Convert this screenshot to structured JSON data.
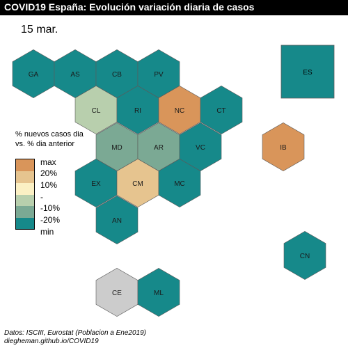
{
  "title": "COVID19 España: Evolución variación diaria de casos",
  "date": "15 mar.",
  "legend": {
    "title_line1": "% nuevos casos dia",
    "title_line2": "vs. % dia anterior",
    "labels": [
      "max",
      "20%",
      "10%",
      "-",
      "-10%",
      "-20%",
      "min"
    ],
    "colors": [
      "#d9955a",
      "#e6c48f",
      "#fbf0c4",
      "#b8cfad",
      "#7ba994",
      "#16898a"
    ]
  },
  "regions": [
    {
      "code": "GA",
      "color": "#16898a"
    },
    {
      "code": "AS",
      "color": "#16898a"
    },
    {
      "code": "CB",
      "color": "#16898a"
    },
    {
      "code": "PV",
      "color": "#16898a"
    },
    {
      "code": "CL",
      "color": "#b8cfad"
    },
    {
      "code": "RI",
      "color": "#16898a"
    },
    {
      "code": "NC",
      "color": "#d9955a"
    },
    {
      "code": "CT",
      "color": "#16898a"
    },
    {
      "code": "MD",
      "color": "#7ba994"
    },
    {
      "code": "AR",
      "color": "#7ba994"
    },
    {
      "code": "VC",
      "color": "#16898a"
    },
    {
      "code": "EX",
      "color": "#16898a"
    },
    {
      "code": "CM",
      "color": "#e6c48f"
    },
    {
      "code": "MC",
      "color": "#16898a"
    },
    {
      "code": "AN",
      "color": "#16898a"
    },
    {
      "code": "CE",
      "color": "#cccccc"
    },
    {
      "code": "ML",
      "color": "#16898a"
    },
    {
      "code": "IB",
      "color": "#d9955a"
    },
    {
      "code": "CN",
      "color": "#16898a"
    },
    {
      "code": "ES",
      "color": "#16898a"
    }
  ],
  "source_line1": "Datos: ISCIII, Eurostat (Poblacion a Ene2019)",
  "source_line2": "diegheman.github.io/COVID19"
}
